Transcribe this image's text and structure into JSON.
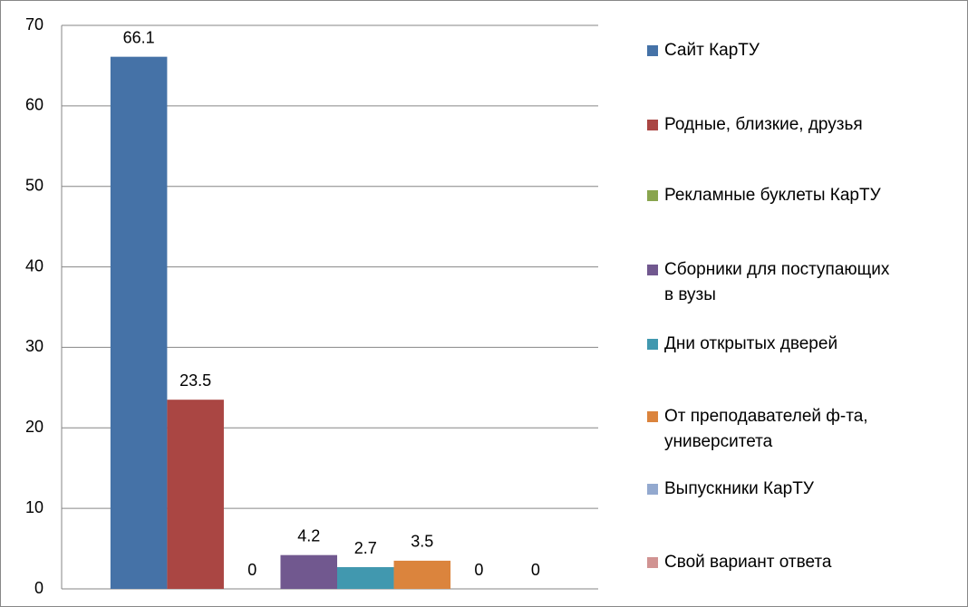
{
  "chart_data": {
    "type": "bar",
    "categories": [
      null
    ],
    "series": [
      {
        "name": "Сайт КарТУ",
        "color": "#4572a7",
        "values": [
          66.1
        ]
      },
      {
        "name": "Родные, близкие, друзья",
        "color": "#aa4643",
        "values": [
          23.5
        ]
      },
      {
        "name": "Рекламные буклеты КарТУ",
        "color": "#89a54e",
        "values": [
          0
        ]
      },
      {
        "name": "Сборники для поступающих в вузы",
        "color": "#71588f",
        "values": [
          4.2
        ]
      },
      {
        "name": "Дни открытых дверей",
        "color": "#4198af",
        "values": [
          2.7
        ]
      },
      {
        "name": "От преподавателей ф-та, университета",
        "color": "#db843d",
        "values": [
          3.5
        ]
      },
      {
        "name": "Выпускники КарТУ",
        "color": "#93a9cf",
        "values": [
          0
        ]
      },
      {
        "name": "Свой вариант ответа",
        "color": "#d19392",
        "values": [
          0
        ]
      }
    ],
    "ylim": [
      0,
      70
    ],
    "yticks": [
      0,
      10,
      20,
      30,
      40,
      50,
      60,
      70
    ],
    "grid": true,
    "legend": "right"
  }
}
